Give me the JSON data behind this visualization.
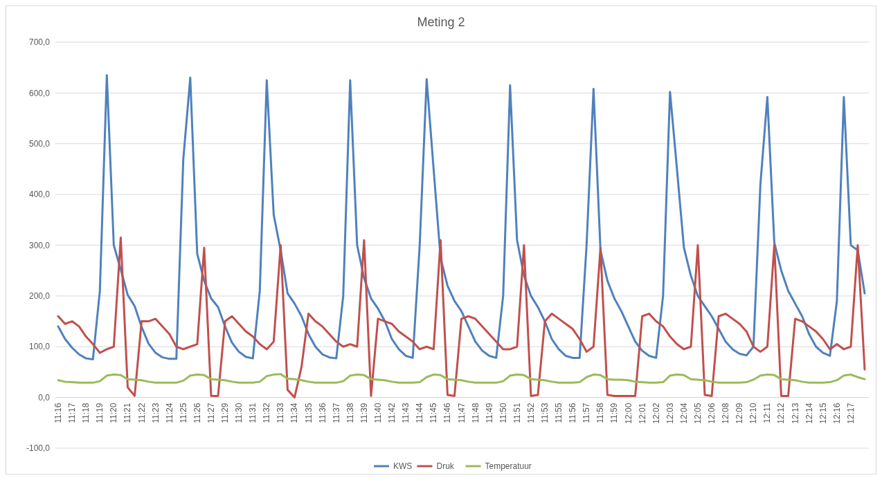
{
  "chart_data": {
    "type": "line",
    "title": "Meting 2",
    "categories": [
      "11:16",
      null,
      "11:17",
      null,
      "11:18",
      null,
      "11:19",
      null,
      "11:20",
      null,
      "11:21",
      null,
      "11:22",
      null,
      "11:23",
      null,
      "11:24",
      null,
      "11:25",
      null,
      "11:26",
      null,
      "11:27",
      null,
      "11:29",
      null,
      "11:30",
      null,
      "11:31",
      null,
      "11:32",
      null,
      "11:33",
      null,
      "11:34",
      null,
      "11:35",
      null,
      "11:36",
      null,
      "11:37",
      null,
      "11:38",
      null,
      "11:39",
      null,
      "11:40",
      null,
      "11:42",
      null,
      "11:43",
      null,
      "11:44",
      null,
      "11:45",
      null,
      "11:46",
      null,
      "11:47",
      null,
      "11:48",
      null,
      "11:49",
      null,
      "11:50",
      null,
      "11:51",
      null,
      "11:52",
      null,
      "11:53",
      null,
      "11:55",
      null,
      "11:56",
      null,
      "11:57",
      null,
      "11:58",
      null,
      "11:59",
      null,
      "12:00",
      null,
      "12:01",
      null,
      "12:02",
      null,
      "12:03",
      null,
      "12:04",
      null,
      "12:05",
      null,
      "12:06",
      null,
      "12:08",
      null,
      "12:09",
      null,
      "12:10",
      null,
      "12:11",
      null,
      "12:12",
      null,
      "12:13",
      null,
      "12:14",
      null,
      "12:15",
      null,
      "12:16",
      null,
      "12:17",
      null,
      null
    ],
    "series": [
      {
        "name": "KWS",
        "color": "#4f81bd",
        "values": [
          140,
          115,
          98,
          85,
          77,
          75,
          210,
          635,
          300,
          252,
          202,
          180,
          139,
          106,
          88,
          79,
          76,
          76,
          470,
          630,
          283,
          230,
          195,
          178,
          140,
          108,
          90,
          80,
          77,
          210,
          625,
          360,
          290,
          205,
          185,
          160,
          125,
          100,
          85,
          79,
          77,
          200,
          625,
          300,
          235,
          195,
          175,
          150,
          115,
          95,
          82,
          78,
          300,
          627,
          450,
          275,
          220,
          190,
          170,
          140,
          110,
          92,
          82,
          78,
          200,
          615,
          310,
          240,
          200,
          178,
          150,
          115,
          95,
          82,
          78,
          78,
          300,
          608,
          290,
          230,
          195,
          170,
          140,
          110,
          92,
          82,
          78,
          200,
          602,
          450,
          295,
          240,
          200,
          180,
          160,
          135,
          110,
          95,
          86,
          83,
          100,
          420,
          592,
          305,
          250,
          210,
          185,
          160,
          125,
          100,
          88,
          82,
          190,
          592,
          300,
          290,
          205
        ]
      },
      {
        "name": "Druk",
        "color": "#c0504d",
        "values": [
          160,
          145,
          150,
          140,
          120,
          105,
          88,
          95,
          100,
          315,
          20,
          3,
          150,
          150,
          155,
          140,
          125,
          100,
          95,
          100,
          105,
          295,
          3,
          3,
          150,
          160,
          145,
          130,
          120,
          105,
          95,
          110,
          300,
          15,
          0,
          60,
          165,
          150,
          140,
          125,
          110,
          100,
          105,
          100,
          310,
          3,
          155,
          150,
          145,
          130,
          120,
          110,
          95,
          100,
          95,
          310,
          5,
          3,
          155,
          160,
          155,
          140,
          125,
          110,
          95,
          95,
          100,
          300,
          3,
          5,
          150,
          165,
          155,
          145,
          135,
          115,
          90,
          100,
          295,
          5,
          3,
          3,
          3,
          3,
          160,
          165,
          150,
          140,
          120,
          105,
          95,
          100,
          300,
          5,
          3,
          160,
          165,
          155,
          145,
          130,
          100,
          90,
          100,
          300,
          3,
          3,
          155,
          150,
          140,
          130,
          115,
          95,
          105,
          95,
          100,
          300,
          55
        ]
      },
      {
        "name": "Temperatuur",
        "color": "#9bbb59",
        "values": [
          34,
          31,
          30,
          29,
          29,
          29,
          32,
          43,
          45,
          44,
          36,
          35,
          34,
          31,
          29,
          29,
          29,
          29,
          33,
          43,
          45,
          44,
          36,
          35,
          34,
          31,
          29,
          29,
          29,
          31,
          42,
          45,
          46,
          37,
          36,
          34,
          31,
          29,
          29,
          29,
          29,
          32,
          43,
          45,
          44,
          36,
          35,
          34,
          31,
          29,
          29,
          29,
          30,
          40,
          45,
          44,
          36,
          35,
          34,
          31,
          29,
          29,
          29,
          29,
          32,
          43,
          45,
          44,
          36,
          35,
          34,
          31,
          29,
          29,
          29,
          30,
          40,
          45,
          44,
          36,
          35,
          35,
          34,
          31,
          30,
          29,
          29,
          30,
          43,
          45,
          44,
          36,
          35,
          34,
          31,
          29,
          29,
          29,
          29,
          30,
          35,
          43,
          45,
          44,
          36,
          35,
          34,
          31,
          29,
          29,
          29,
          30,
          34,
          43,
          45,
          40,
          36
        ]
      }
    ],
    "ylim": [
      -100,
      700
    ],
    "yticks": [
      {
        "value": -100,
        "label": "-100,0"
      },
      {
        "value": 0,
        "label": "0,0"
      },
      {
        "value": 100,
        "label": "100,0"
      },
      {
        "value": 200,
        "label": "200,0"
      },
      {
        "value": 300,
        "label": "300,0"
      },
      {
        "value": 400,
        "label": "400,0"
      },
      {
        "value": 500,
        "label": "500,0"
      },
      {
        "value": 600,
        "label": "600,0"
      },
      {
        "value": 700,
        "label": "700,0"
      }
    ],
    "grid": "y",
    "legend": "bottom",
    "line_style": "solid",
    "marker": "none"
  }
}
